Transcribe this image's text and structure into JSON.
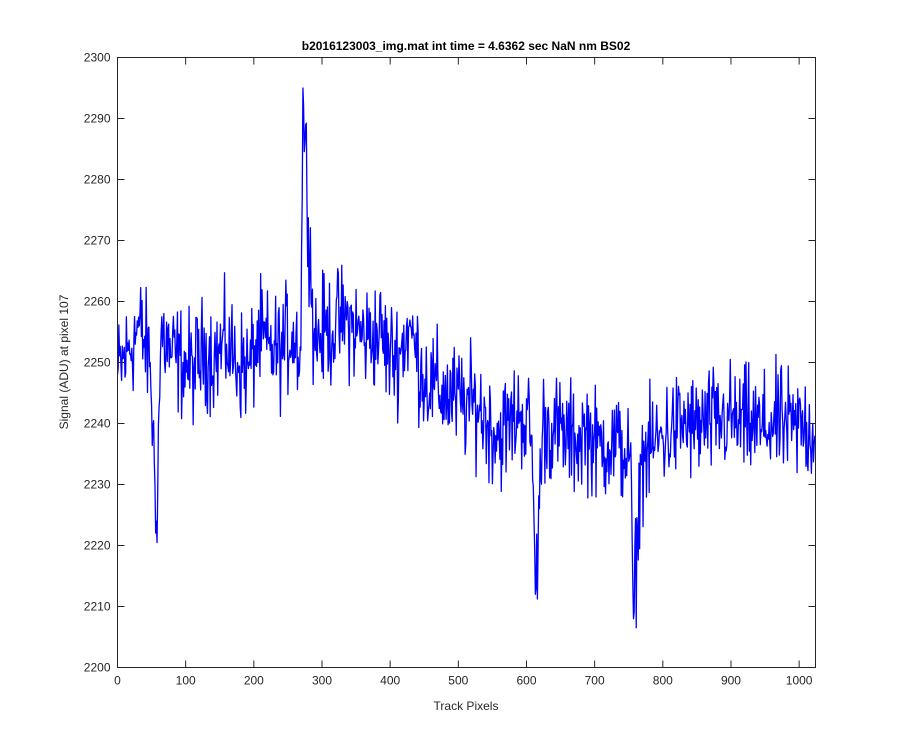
{
  "chart_data": {
    "type": "line",
    "title": "b2016123003_img.mat int time = 4.6362 sec  NaN nm BS02",
    "xlabel": "Track Pixels",
    "ylabel": "Signal (ADU) at pixel 107",
    "xlim": [
      0,
      1024
    ],
    "ylim": [
      2200,
      2300
    ],
    "xticks": [
      0,
      100,
      200,
      300,
      400,
      500,
      600,
      700,
      800,
      900,
      1000
    ],
    "yticks": [
      2200,
      2210,
      2220,
      2230,
      2240,
      2250,
      2260,
      2270,
      2280,
      2290,
      2300
    ],
    "grid": false,
    "line_color": "#0000FF",
    "series": [
      {
        "x": [
          0,
          16,
          32,
          48,
          57,
          64,
          80,
          96,
          112,
          128,
          144,
          160,
          176,
          192,
          208,
          224,
          240,
          256,
          269,
          272,
          288,
          304,
          320,
          336,
          352,
          368,
          384,
          400,
          416,
          428,
          432,
          448,
          464,
          480,
          496,
          512,
          528,
          544,
          560,
          576,
          592,
          608,
          613,
          624,
          640,
          656,
          672,
          688,
          704,
          720,
          736,
          752,
          757,
          768,
          784,
          800,
          816,
          832,
          848,
          864,
          880,
          896,
          912,
          928,
          944,
          960,
          976,
          992,
          1008,
          1023
        ],
        "y": [
          2248,
          2252,
          2256,
          2250,
          2224,
          2255,
          2251,
          2250,
          2249,
          2252,
          2251,
          2253,
          2250,
          2249,
          2254,
          2252,
          2252,
          2255,
          2252,
          2295,
          2254,
          2255,
          2256,
          2257,
          2255,
          2254,
          2255,
          2251,
          2252,
          2256,
          2254,
          2248,
          2246,
          2245,
          2244,
          2243,
          2243,
          2240,
          2238,
          2240,
          2242,
          2238,
          2212,
          2240,
          2239,
          2238,
          2237,
          2239,
          2236,
          2237,
          2236,
          2235,
          2208,
          2234,
          2236,
          2238,
          2239,
          2240,
          2239,
          2240,
          2240,
          2241,
          2240,
          2240,
          2239,
          2240,
          2240,
          2239,
          2240,
          2238
        ]
      }
    ]
  }
}
